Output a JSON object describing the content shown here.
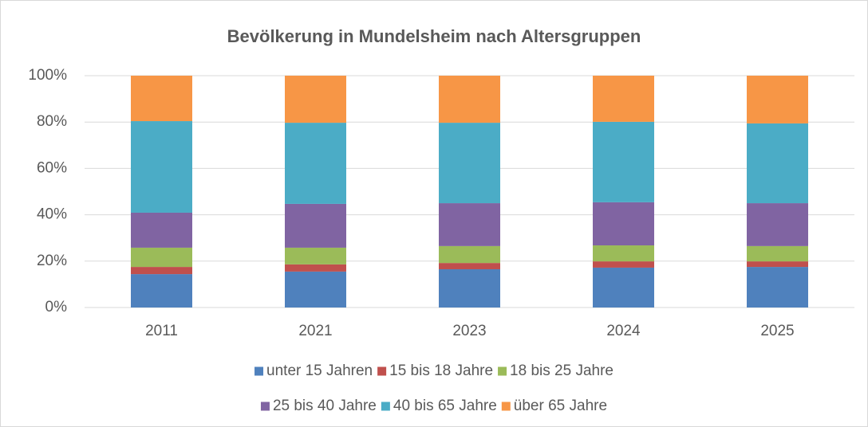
{
  "chart_data": {
    "type": "stacked_bar",
    "title": "Bevölkerung in Mundelsheim nach Altersgruppen",
    "categories": [
      "2011",
      "2021",
      "2023",
      "2024",
      "2025"
    ],
    "series": [
      {
        "name": "unter 15 Jahren",
        "color": "#4f81bd",
        "values": [
          14.4,
          15.5,
          16.5,
          17.2,
          17.5
        ]
      },
      {
        "name": "15 bis 18 Jahre",
        "color": "#c0504d",
        "values": [
          3.1,
          3.1,
          2.7,
          2.7,
          2.4
        ]
      },
      {
        "name": "18 bis 25 Jahre",
        "color": "#9bbb59",
        "values": [
          8.3,
          7.2,
          7.3,
          6.9,
          6.6
        ]
      },
      {
        "name": "25 bis 40 Jahre",
        "color": "#8064a2",
        "values": [
          15.1,
          18.9,
          18.5,
          18.6,
          18.5
        ]
      },
      {
        "name": "40 bis 65 Jahre",
        "color": "#4bacc6",
        "values": [
          39.5,
          35.0,
          34.7,
          34.7,
          34.4
        ]
      },
      {
        "name": "über 65 Jahre",
        "color": "#f79646",
        "values": [
          19.6,
          20.3,
          20.3,
          19.9,
          20.6
        ]
      }
    ],
    "ylim": [
      0,
      100
    ],
    "yticks": [
      {
        "value": 0,
        "label": "0%"
      },
      {
        "value": 20,
        "label": "20%"
      },
      {
        "value": 40,
        "label": "40%"
      },
      {
        "value": 60,
        "label": "60%"
      },
      {
        "value": 80,
        "label": "80%"
      },
      {
        "value": 100,
        "label": "100%"
      }
    ],
    "grid": true,
    "legend": "bottom"
  }
}
